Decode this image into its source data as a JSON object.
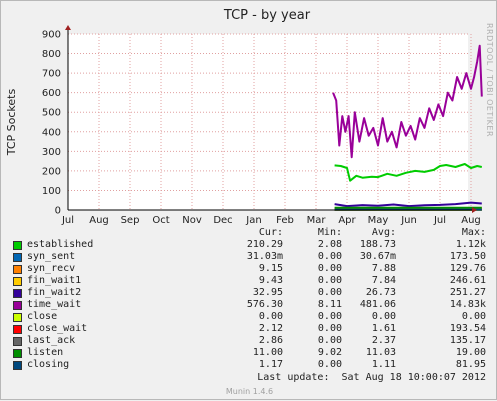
{
  "chart_data": {
    "type": "line",
    "title": "TCP - by year",
    "ylabel": "TCP Sockets",
    "ylim": [
      0,
      900
    ],
    "yticks": [
      0,
      100,
      200,
      300,
      400,
      500,
      600,
      700,
      800,
      900
    ],
    "x_ticks": [
      "Jul",
      "Aug",
      "Sep",
      "Oct",
      "Nov",
      "Dec",
      "Jan",
      "Feb",
      "Mar",
      "Apr",
      "May",
      "Jun",
      "Jul",
      "Aug"
    ],
    "x_range_months": [
      0,
      13.55
    ],
    "grid": true,
    "series": [
      {
        "name": "established",
        "color": "#00cc00",
        "x": [
          8.6,
          8.8,
          9.0,
          9.1,
          9.3,
          9.5,
          9.8,
          10.0,
          10.3,
          10.6,
          10.9,
          11.2,
          11.5,
          11.8,
          12.0,
          12.2,
          12.5,
          12.8,
          13.0,
          13.2,
          13.35
        ],
        "values": [
          228,
          225,
          215,
          150,
          175,
          165,
          170,
          168,
          185,
          175,
          190,
          200,
          195,
          205,
          225,
          230,
          220,
          235,
          215,
          225,
          220
        ]
      },
      {
        "name": "syn_sent",
        "color": "#0066b3",
        "x": [
          8.6,
          13.35
        ],
        "values": [
          0.03,
          0.03
        ]
      },
      {
        "name": "syn_recv",
        "color": "#ff8000",
        "x": [
          8.6,
          13.35
        ],
        "values": [
          8,
          9
        ]
      },
      {
        "name": "fin_wait1",
        "color": "#ffcc00",
        "x": [
          8.6,
          13.35
        ],
        "values": [
          8,
          9
        ]
      },
      {
        "name": "fin_wait2",
        "color": "#330099",
        "x": [
          8.6,
          9.0,
          9.5,
          10.0,
          10.5,
          11.0,
          11.5,
          12.0,
          12.5,
          13.0,
          13.35
        ],
        "values": [
          30,
          20,
          25,
          22,
          28,
          20,
          24,
          26,
          30,
          38,
          33
        ]
      },
      {
        "name": "time_wait",
        "color": "#990099",
        "x": [
          8.55,
          8.65,
          8.75,
          8.85,
          8.95,
          9.05,
          9.15,
          9.25,
          9.4,
          9.55,
          9.7,
          9.85,
          10.0,
          10.15,
          10.3,
          10.45,
          10.6,
          10.75,
          10.9,
          11.05,
          11.2,
          11.35,
          11.5,
          11.65,
          11.8,
          11.95,
          12.1,
          12.25,
          12.4,
          12.55,
          12.7,
          12.85,
          13.0,
          13.1,
          13.2,
          13.28,
          13.35
        ],
        "values": [
          600,
          560,
          330,
          480,
          400,
          480,
          270,
          500,
          350,
          470,
          380,
          420,
          330,
          470,
          350,
          400,
          320,
          450,
          380,
          430,
          360,
          470,
          420,
          520,
          460,
          540,
          480,
          600,
          560,
          680,
          620,
          700,
          620,
          680,
          760,
          840,
          580
        ]
      },
      {
        "name": "close",
        "color": "#ccff00",
        "x": [
          8.6,
          13.35
        ],
        "values": [
          0,
          0
        ]
      },
      {
        "name": "close_wait",
        "color": "#ff0000",
        "x": [
          8.6,
          13.35
        ],
        "values": [
          2,
          2
        ]
      },
      {
        "name": "last_ack",
        "color": "#666666",
        "x": [
          8.6,
          13.35
        ],
        "values": [
          2,
          3
        ]
      },
      {
        "name": "listen",
        "color": "#008f00",
        "x": [
          8.6,
          13.35
        ],
        "values": [
          11,
          11
        ]
      },
      {
        "name": "closing",
        "color": "#00487d",
        "x": [
          8.6,
          13.35
        ],
        "values": [
          1,
          1
        ]
      }
    ]
  },
  "legend": {
    "headers": {
      "cur": "Cur:",
      "min": "Min:",
      "avg": "Avg:",
      "max": "Max:"
    },
    "rows": [
      {
        "name": "established",
        "color": "#00cc00",
        "cur": "210.29",
        "min": "2.08",
        "avg": "188.73",
        "max": "1.12k"
      },
      {
        "name": "syn_sent",
        "color": "#0066b3",
        "cur": "31.03m",
        "min": "0.00",
        "avg": "30.67m",
        "max": "173.50"
      },
      {
        "name": "syn_recv",
        "color": "#ff8000",
        "cur": "9.15",
        "min": "0.00",
        "avg": "7.88",
        "max": "129.76"
      },
      {
        "name": "fin_wait1",
        "color": "#ffcc00",
        "cur": "9.43",
        "min": "0.00",
        "avg": "7.84",
        "max": "246.61"
      },
      {
        "name": "fin_wait2",
        "color": "#330099",
        "cur": "32.95",
        "min": "0.00",
        "avg": "26.73",
        "max": "251.27"
      },
      {
        "name": "time_wait",
        "color": "#990099",
        "cur": "576.30",
        "min": "8.11",
        "avg": "481.06",
        "max": "14.83k"
      },
      {
        "name": "close",
        "color": "#ccff00",
        "cur": "0.00",
        "min": "0.00",
        "avg": "0.00",
        "max": "0.00"
      },
      {
        "name": "close_wait",
        "color": "#ff0000",
        "cur": "2.12",
        "min": "0.00",
        "avg": "1.61",
        "max": "193.54"
      },
      {
        "name": "last_ack",
        "color": "#666666",
        "cur": "2.86",
        "min": "0.00",
        "avg": "2.37",
        "max": "135.17"
      },
      {
        "name": "listen",
        "color": "#008f00",
        "cur": "11.00",
        "min": "9.02",
        "avg": "11.03",
        "max": "19.00"
      },
      {
        "name": "closing",
        "color": "#00487d",
        "cur": "1.17",
        "min": "0.00",
        "avg": "1.11",
        "max": "81.95"
      }
    ],
    "last_update": "Last update:  Sat Aug 18 10:00:07 2012"
  },
  "side_label": "RRDTOOL / TOBI OETIKER",
  "footer": "Munin 1.4.6"
}
